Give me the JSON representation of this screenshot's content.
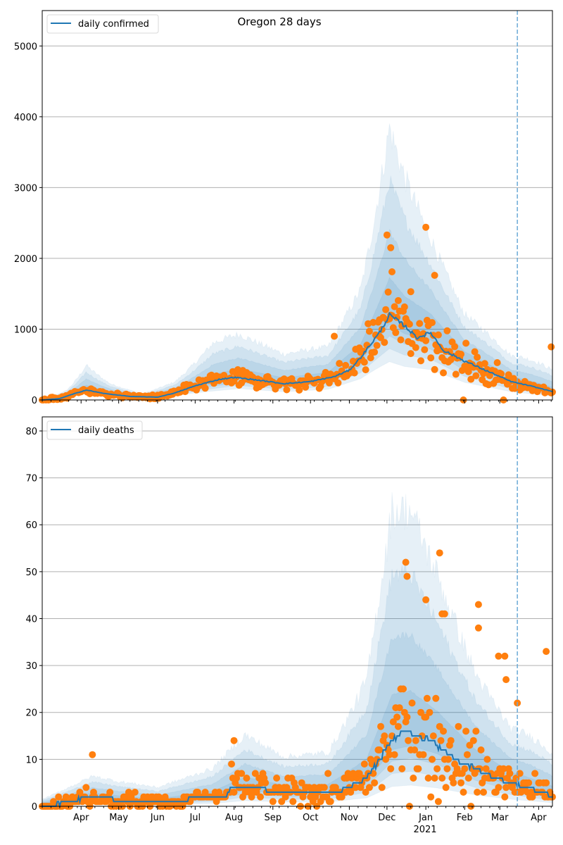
{
  "chart_data": [
    {
      "type": "line",
      "title": "Oregon 28 days",
      "legend": {
        "label": "daily confirmed",
        "placement": "top-left"
      },
      "xlabel": "",
      "ylabel": "",
      "ylim": [
        0,
        5500
      ],
      "yticks": [
        0,
        1000,
        2000,
        3000,
        4000,
        5000
      ],
      "grid": "y",
      "x_range": [
        "2020-03-01",
        "2021-04-12"
      ],
      "forecast_start": "2021-03-15",
      "series_color": "#1f77b4",
      "points_color": "#ff7f0e",
      "median_keypoints": [
        [
          "2020-03-01",
          0
        ],
        [
          "2020-03-15",
          20
        ],
        [
          "2020-03-25",
          80
        ],
        [
          "2020-04-05",
          140
        ],
        [
          "2020-04-20",
          90
        ],
        [
          "2020-05-10",
          50
        ],
        [
          "2020-06-01",
          40
        ],
        [
          "2020-06-15",
          100
        ],
        [
          "2020-07-01",
          200
        ],
        [
          "2020-07-20",
          290
        ],
        [
          "2020-08-01",
          320
        ],
        [
          "2020-08-20",
          280
        ],
        [
          "2020-09-10",
          230
        ],
        [
          "2020-10-01",
          260
        ],
        [
          "2020-10-20",
          330
        ],
        [
          "2020-11-01",
          420
        ],
        [
          "2020-11-10",
          600
        ],
        [
          "2020-11-25",
          950
        ],
        [
          "2020-12-03",
          1200
        ],
        [
          "2020-12-15",
          1050
        ],
        [
          "2020-12-25",
          880
        ],
        [
          "2021-01-05",
          950
        ],
        [
          "2021-01-15",
          700
        ],
        [
          "2021-02-01",
          550
        ],
        [
          "2021-02-20",
          400
        ],
        [
          "2021-03-10",
          260
        ],
        [
          "2021-03-25",
          200
        ],
        [
          "2021-04-12",
          120
        ]
      ],
      "band_keypoints": [
        [
          "2020-03-01",
          0,
          0.5,
          2
        ],
        [
          "2020-03-20",
          60,
          0.7,
          2.2
        ],
        [
          "2020-04-05",
          140,
          0.7,
          3.5
        ],
        [
          "2020-04-25",
          90,
          0.7,
          2.5
        ],
        [
          "2020-05-20",
          40,
          0.7,
          2.2
        ],
        [
          "2020-06-15",
          100,
          0.6,
          2.6
        ],
        [
          "2020-07-15",
          250,
          0.5,
          3.2
        ],
        [
          "2020-08-05",
          320,
          0.5,
          2.9
        ],
        [
          "2020-09-10",
          230,
          0.5,
          2.8
        ],
        [
          "2020-10-15",
          300,
          0.5,
          2.5
        ],
        [
          "2020-11-10",
          600,
          0.5,
          2.6
        ],
        [
          "2020-12-03",
          1200,
          0.45,
          3.2
        ],
        [
          "2020-12-15",
          1050,
          0.45,
          3.0
        ],
        [
          "2021-01-05",
          950,
          0.45,
          2.4
        ],
        [
          "2021-02-01",
          550,
          0.45,
          2.2
        ],
        [
          "2021-03-10",
          260,
          0.45,
          2.4
        ],
        [
          "2021-04-12",
          120,
          0.45,
          3.5
        ]
      ],
      "observed_highlights": [
        [
          "2020-12-01",
          2330
        ],
        [
          "2020-12-04",
          2150
        ],
        [
          "2021-01-01",
          2440
        ],
        [
          "2020-12-05",
          1810
        ],
        [
          "2021-01-08",
          1760
        ],
        [
          "2020-12-20",
          1530
        ],
        [
          "2020-11-25",
          900
        ],
        [
          "2020-10-20",
          900
        ],
        [
          "2021-04-11",
          750
        ]
      ]
    },
    {
      "type": "line",
      "title": "",
      "legend": {
        "label": "daily deaths",
        "placement": "top-left"
      },
      "xlabel": "",
      "ylabel": "",
      "ylim": [
        0,
        83
      ],
      "yticks": [
        0,
        10,
        20,
        30,
        40,
        50,
        60,
        70,
        80
      ],
      "xticks": [
        "Apr",
        "May",
        "Jun",
        "Jul",
        "Aug",
        "Sep",
        "Oct",
        "Nov",
        "Dec",
        "Jan",
        "Feb",
        "Mar",
        "Apr"
      ],
      "xtick_dates": [
        "2020-04-01",
        "2020-05-01",
        "2020-06-01",
        "2020-07-01",
        "2020-08-01",
        "2020-09-01",
        "2020-10-01",
        "2020-11-01",
        "2020-12-01",
        "2021-01-01",
        "2021-02-01",
        "2021-03-01",
        "2021-04-01"
      ],
      "year_label": "2021",
      "grid": "y",
      "x_range": [
        "2020-03-01",
        "2021-04-12"
      ],
      "forecast_start": "2021-03-15",
      "series_color": "#1f77b4",
      "points_color": "#ff7f0e",
      "median_keypoints": [
        [
          "2020-03-01",
          0
        ],
        [
          "2020-03-25",
          1
        ],
        [
          "2020-04-05",
          2
        ],
        [
          "2020-04-20",
          2
        ],
        [
          "2020-05-01",
          1
        ],
        [
          "2020-06-20",
          1
        ],
        [
          "2020-07-01",
          2
        ],
        [
          "2020-07-25",
          2
        ],
        [
          "2020-07-30",
          4
        ],
        [
          "2020-08-25",
          4
        ],
        [
          "2020-08-28",
          3
        ],
        [
          "2020-10-10",
          3
        ],
        [
          "2020-10-20",
          3
        ],
        [
          "2020-11-01",
          4
        ],
        [
          "2020-11-15",
          6
        ],
        [
          "2020-11-25",
          10
        ],
        [
          "2020-12-05",
          14
        ],
        [
          "2020-12-15",
          16
        ],
        [
          "2020-12-25",
          15
        ],
        [
          "2021-01-05",
          14
        ],
        [
          "2021-01-15",
          12
        ],
        [
          "2021-01-25",
          10
        ],
        [
          "2021-02-10",
          8
        ],
        [
          "2021-02-25",
          6
        ],
        [
          "2021-03-10",
          5
        ],
        [
          "2021-03-20",
          4
        ],
        [
          "2021-04-05",
          3
        ],
        [
          "2021-04-12",
          2
        ]
      ],
      "band_keypoints": [
        [
          "2020-03-01",
          0.5,
          0.3,
          3
        ],
        [
          "2020-04-10",
          2,
          0.3,
          3.2
        ],
        [
          "2020-05-01",
          1.5,
          0.3,
          3.5
        ],
        [
          "2020-06-01",
          1,
          0.3,
          4
        ],
        [
          "2020-07-15",
          2,
          0.3,
          4
        ],
        [
          "2020-08-10",
          4,
          0.3,
          3.8
        ],
        [
          "2020-09-10",
          3,
          0.3,
          3.5
        ],
        [
          "2020-10-15",
          3,
          0.3,
          3.8
        ],
        [
          "2020-11-15",
          6,
          0.3,
          4.5
        ],
        [
          "2020-12-05",
          14,
          0.3,
          4.5
        ],
        [
          "2020-12-20",
          15,
          0.3,
          4.2
        ],
        [
          "2021-01-10",
          13,
          0.3,
          3.8
        ],
        [
          "2021-02-10",
          8,
          0.3,
          3.5
        ],
        [
          "2021-03-10",
          5,
          0.3,
          3.3
        ],
        [
          "2021-04-12",
          2.5,
          0.3,
          4.5
        ]
      ],
      "observed_highlights": [
        [
          "2020-12-16",
          52
        ],
        [
          "2020-12-17",
          49
        ],
        [
          "2021-01-12",
          54
        ],
        [
          "2021-01-01",
          44
        ],
        [
          "2021-02-12",
          43
        ],
        [
          "2021-01-14",
          41
        ],
        [
          "2021-01-16",
          41
        ],
        [
          "2021-02-12",
          38
        ],
        [
          "2021-02-28",
          32
        ],
        [
          "2021-03-05",
          32
        ],
        [
          "2021-04-07",
          33
        ],
        [
          "2021-03-06",
          27
        ],
        [
          "2021-03-15",
          22
        ],
        [
          "2020-04-10",
          11
        ],
        [
          "2020-08-01",
          14
        ]
      ]
    }
  ]
}
